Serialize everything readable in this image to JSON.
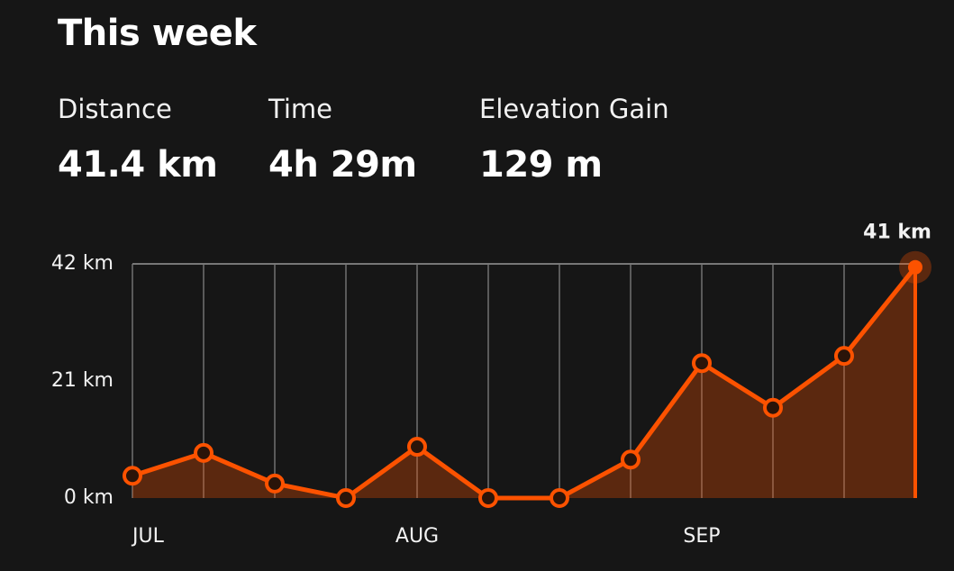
{
  "header": {
    "title": "This week"
  },
  "stats": [
    {
      "label": "Distance",
      "value": "41.4 km"
    },
    {
      "label": "Time",
      "value": "4h 29m"
    },
    {
      "label": "Elevation Gain",
      "value": "129 m"
    }
  ],
  "chart_data": {
    "type": "area",
    "categories": [
      "JUL",
      null,
      null,
      null,
      "AUG",
      null,
      null,
      null,
      "SEP",
      null,
      null,
      null
    ],
    "values": [
      4.0,
      8.1,
      2.6,
      0,
      9.2,
      0,
      0,
      6.9,
      24.2,
      16.2,
      25.5,
      41.4
    ],
    "value_labels": [
      null,
      null,
      null,
      null,
      null,
      null,
      null,
      null,
      null,
      null,
      null,
      "41 km"
    ],
    "color": "#fc5200",
    "ylim": [
      0,
      42
    ],
    "yticks": [
      {
        "value": 0,
        "label": "0 km"
      },
      {
        "value": 21,
        "label": "21 km"
      },
      {
        "value": 42,
        "label": "42 km"
      }
    ],
    "grid": true
  }
}
